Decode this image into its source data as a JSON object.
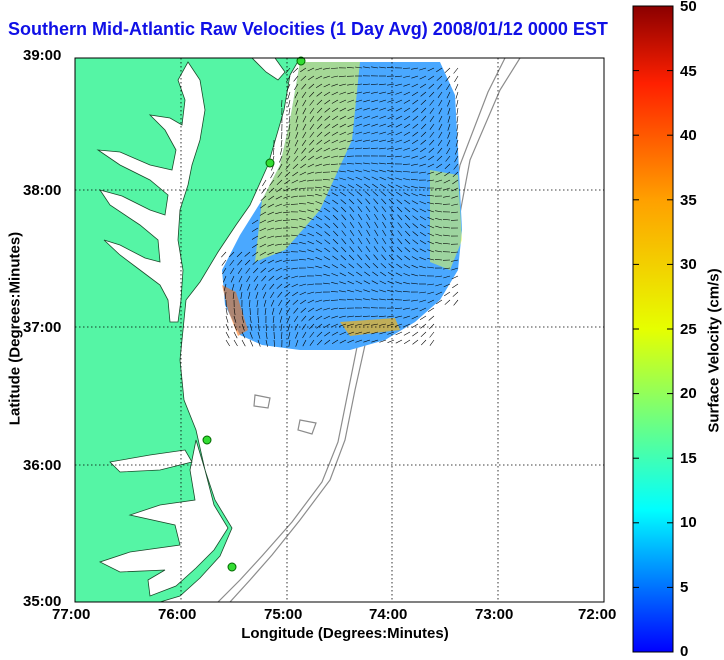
{
  "title": "Southern Mid-Atlantic Raw Velocities (1 Day Avg) 2008/01/12 0000 EST",
  "axes": {
    "xlabel": "Longitude (Degrees:Minutes)",
    "ylabel": "Latitude (Degrees:Minutes)",
    "x_ticks": [
      "77:00",
      "76:00",
      "75:00",
      "74:00",
      "73:00",
      "72:00"
    ],
    "y_ticks": [
      "39:00",
      "38:00",
      "37:00",
      "36:00",
      "35:00"
    ]
  },
  "colorbar": {
    "label": "Surface Velocity (cm/s)",
    "ticks": [
      "0",
      "5",
      "10",
      "15",
      "20",
      "25",
      "30",
      "35",
      "40",
      "45",
      "50"
    ],
    "min": 0,
    "max": 50,
    "colors": [
      "#0000ff",
      "#00a0ff",
      "#00ffff",
      "#60ff90",
      "#e6ff00",
      "#ffa000",
      "#ff2000",
      "#8b0000"
    ]
  },
  "map_colors": {
    "land": "#55f5a5",
    "water": "#ffffff",
    "bathymetry": "#8c8c8c",
    "grid": "#000000"
  },
  "stations": 5
}
